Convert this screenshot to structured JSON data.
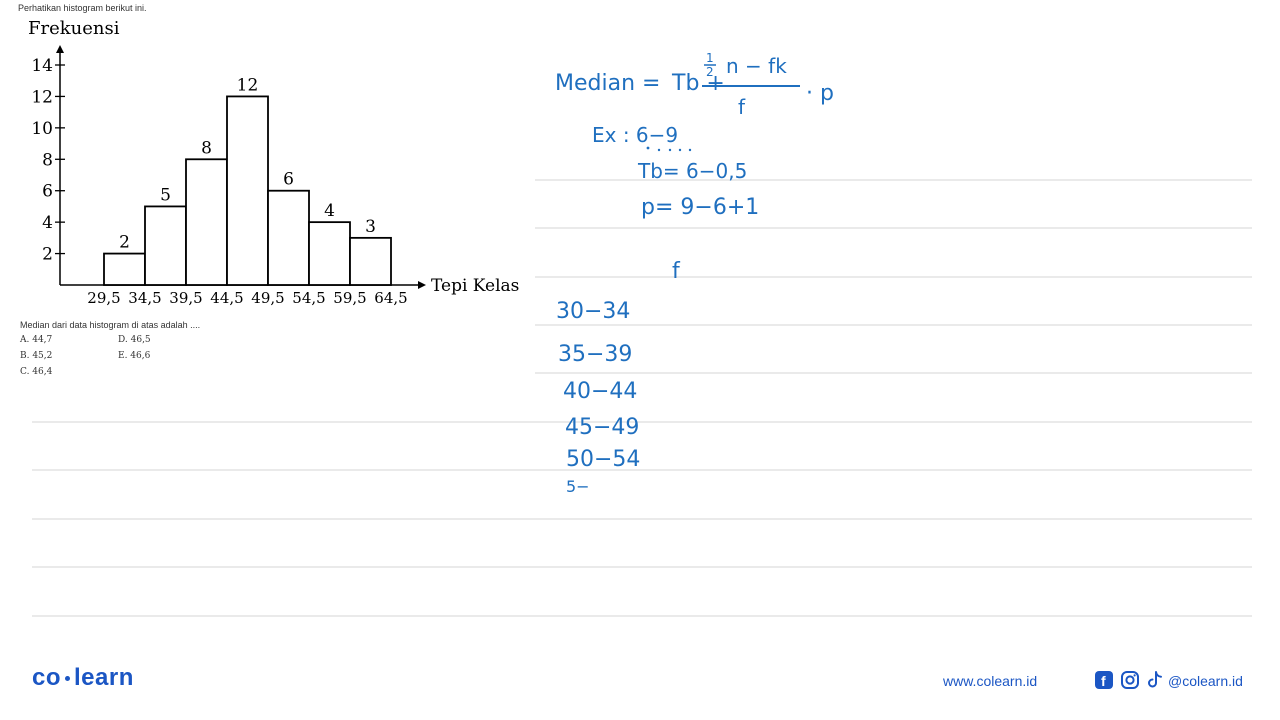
{
  "prompt": "Perhatikan histogram berikut ini.",
  "chart_data": {
    "type": "bar",
    "ylabel": "Frekuensi",
    "xlabel": "Tepi Kelas",
    "yticks": [
      2,
      4,
      6,
      8,
      10,
      12,
      14
    ],
    "ylim": [
      0,
      14
    ],
    "class_edges": [
      "29,5",
      "34,5",
      "39,5",
      "44,5",
      "49,5",
      "54,5",
      "59,5",
      "64,5"
    ],
    "values": [
      2,
      5,
      8,
      12,
      6,
      4,
      3
    ],
    "data_labels": [
      "2",
      "5",
      "8",
      "12",
      "6",
      "4",
      "3"
    ]
  },
  "question": {
    "text": "Median dari data histogram di atas adalah ....",
    "options": [
      {
        "label": "A. 44,7"
      },
      {
        "label": "B. 45,2"
      },
      {
        "label": "C. 46,4"
      },
      {
        "label": "D. 46,5"
      },
      {
        "label": "E. 46,6"
      }
    ]
  },
  "handwriting": {
    "formula_lhs": "Median =",
    "formula_tb": "Tb +",
    "formula_num": "n − fk",
    "formula_half": "1",
    "formula_two": "2",
    "formula_den": "f",
    "formula_p": "· p",
    "ex_line": "Ex : 6−9",
    "tb_line": "Tb= 6−0,5",
    "p_line": "p= 9−6+1",
    "f_header": "f",
    "classes": [
      "30−34",
      "35−39",
      "40−44",
      "45−49",
      "50−54",
      "5−"
    ]
  },
  "footer": {
    "brand_left": "co",
    "brand_right": "learn",
    "url": "www.colearn.id",
    "handle": "@colearn.id"
  },
  "colors": {
    "ink": "#1f6fbf",
    "brand": "#1b56c4"
  }
}
